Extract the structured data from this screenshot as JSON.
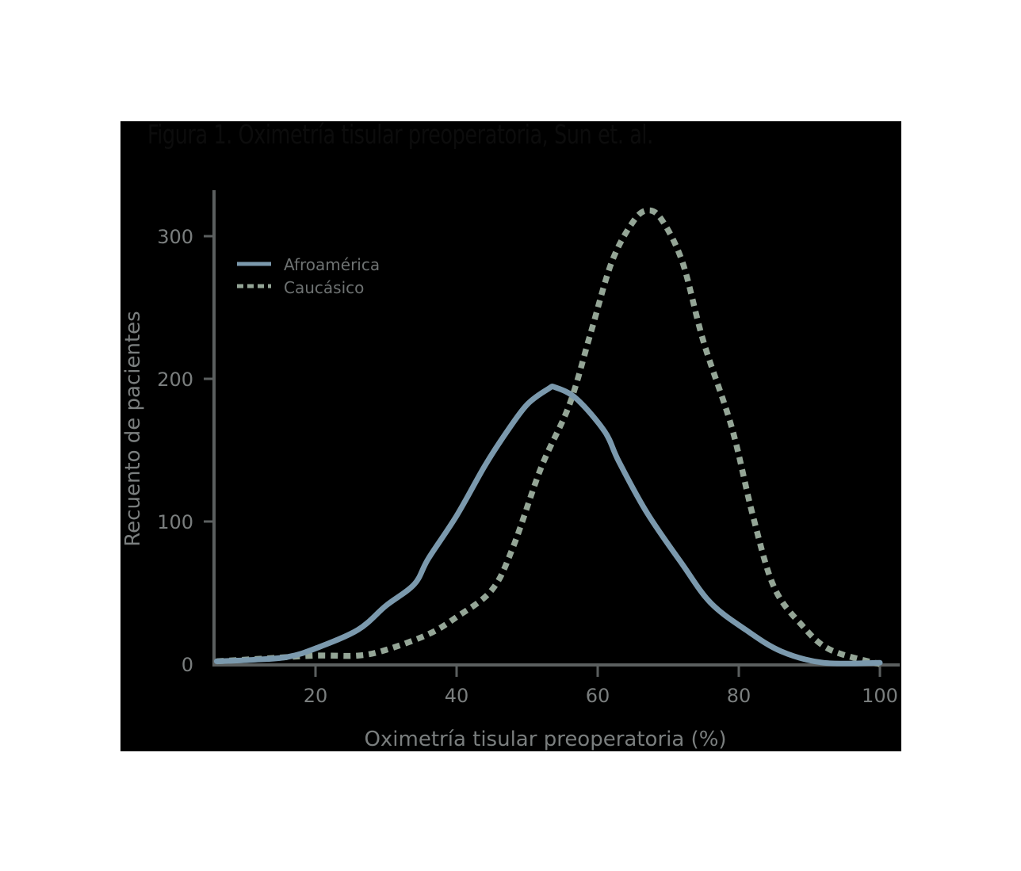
{
  "chart_data": {
    "type": "line",
    "title": "Figura 1. Oximetría tisular preoperatoria, Sun et. al.",
    "xlabel": "Oximetría tisular preoperatoria (%)",
    "ylabel": "Recuento de pacientes",
    "xlim": [
      5,
      102
    ],
    "ylim": [
      0,
      330
    ],
    "xticks": [
      20,
      40,
      60,
      80,
      100
    ],
    "yticks": [
      0,
      100,
      200,
      300
    ],
    "grid": false,
    "legend_position": "upper-left",
    "series": [
      {
        "name": "Afroamérica",
        "style": "solid",
        "color": "#7b99ad",
        "x": [
          6,
          11,
          16,
          20,
          26,
          30,
          34,
          36,
          40,
          44,
          47,
          50,
          53,
          54,
          57,
          61,
          63,
          67,
          72,
          76,
          81,
          86,
          92,
          100
        ],
        "y": [
          2,
          3,
          5,
          11,
          24,
          41,
          56,
          74,
          104,
          139,
          162,
          182,
          193,
          194,
          186,
          163,
          142,
          106,
          70,
          43,
          24,
          9,
          1,
          1
        ]
      },
      {
        "name": "Caucasico",
        "display_name": "Caucásico",
        "style": "dashed",
        "color": "#94a596",
        "x": [
          6,
          13,
          20,
          26,
          30,
          36,
          40,
          45,
          48,
          52,
          56,
          59,
          62,
          65,
          67,
          69,
          72,
          75,
          79,
          82,
          85,
          89,
          93,
          100
        ],
        "y": [
          2,
          4,
          6,
          6,
          10,
          21,
          33,
          52,
          82,
          138,
          182,
          232,
          282,
          310,
          318,
          312,
          282,
          226,
          166,
          104,
          54,
          27,
          10,
          0
        ]
      }
    ]
  },
  "figure": {
    "title": "Figura 1. Oximetría tisular preoperatoria, Sun et. al.",
    "xlabel": "Oximetría tisular preoperatoria (%)",
    "ylabel": "Recuento de pacientes",
    "xtick_labels": [
      "20",
      "40",
      "60",
      "80",
      "100"
    ],
    "ytick_labels": [
      "0",
      "100",
      "200",
      "300"
    ],
    "legend": [
      {
        "label": "Afroamérica",
        "icon": "solid-line-swatch"
      },
      {
        "label": "Caucásico",
        "icon": "dashed-line-swatch"
      }
    ],
    "colors": {
      "background": "#000000",
      "page": "#ffffff",
      "axis": "#5b5f5f",
      "text": "#7a7e7e",
      "afro": "#7b99ad",
      "cauc": "#94a596"
    }
  }
}
